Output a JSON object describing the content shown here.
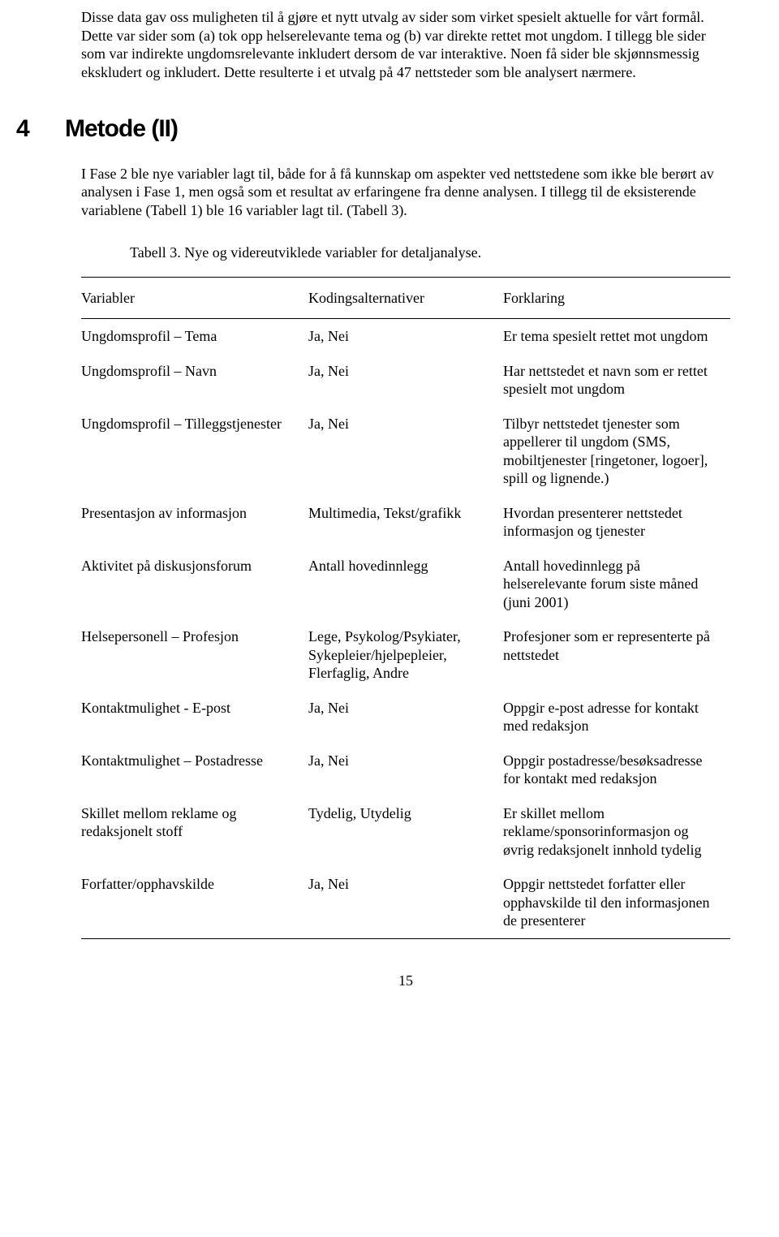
{
  "intro": "Disse data gav oss muligheten til å gjøre et nytt utvalg av sider som virket spesielt aktuelle for vårt formål. Dette var sider som (a) tok opp helserelevante tema og (b) var direkte rettet mot ungdom. I tillegg ble sider som var indirekte ungdomsrelevante inkludert dersom de var interaktive. Noen få sider ble skjønnsmessig ekskludert og inkludert. Dette resulterte i et utvalg på 47 nettsteder som ble analysert nærmere.",
  "section": {
    "number": "4",
    "title": "Metode (II)"
  },
  "body": "I Fase 2 ble nye variabler lagt til, både for å få kunnskap om aspekter ved nettstedene som ikke ble berørt av analysen i Fase 1, men også som et resultat av erfaringene fra denne analysen. I tillegg til de eksisterende variablene (Tabell 1) ble 16 variabler lagt til. (Tabell 3).",
  "tableCaption": "Tabell 3. Nye og videreutviklede variabler for detaljanalyse.",
  "table": {
    "headers": [
      "Variabler",
      "Kodingsalternativer",
      "Forklaring"
    ],
    "rows": [
      [
        "Ungdomsprofil – Tema",
        "Ja, Nei",
        "Er tema spesielt rettet mot ungdom"
      ],
      [
        "Ungdomsprofil – Navn",
        "Ja, Nei",
        "Har nettstedet et navn som er rettet spesielt mot ungdom"
      ],
      [
        "Ungdomsprofil – Tilleggstjenester",
        "Ja, Nei",
        "Tilbyr nettstedet tjenester som appellerer til ungdom (SMS, mobiltjenester [ringetoner, logoer], spill og lignende.)"
      ],
      [
        "Presentasjon av informasjon",
        "Multimedia, Tekst/grafikk",
        "Hvordan presenterer nettstedet informasjon og tjenester"
      ],
      [
        "Aktivitet på diskusjonsforum",
        "Antall hovedinnlegg",
        "Antall hovedinnlegg på helserelevante forum siste måned (juni 2001)"
      ],
      [
        "Helsepersonell – Profesjon",
        "Lege, Psykolog/Psykiater, Sykepleier/hjelpepleier, Flerfaglig, Andre",
        "Profesjoner som er representerte på nettstedet"
      ],
      [
        "Kontaktmulighet - E-post",
        "Ja, Nei",
        "Oppgir e-post adresse for kontakt med redaksjon"
      ],
      [
        "Kontaktmulighet – Postadresse",
        "Ja, Nei",
        "Oppgir postadresse/besøksadresse for kontakt med redaksjon"
      ],
      [
        "Skillet mellom reklame og redaksjonelt stoff",
        "Tydelig, Utydelig",
        "Er skillet mellom reklame/sponsorinformasjon og øvrig redaksjonelt innhold tydelig"
      ],
      [
        "Forfatter/opphavskilde",
        "Ja, Nei",
        "Oppgir nettstedet forfatter eller opphavskilde til den informasjonen de presenterer"
      ]
    ]
  },
  "pageNumber": "15"
}
